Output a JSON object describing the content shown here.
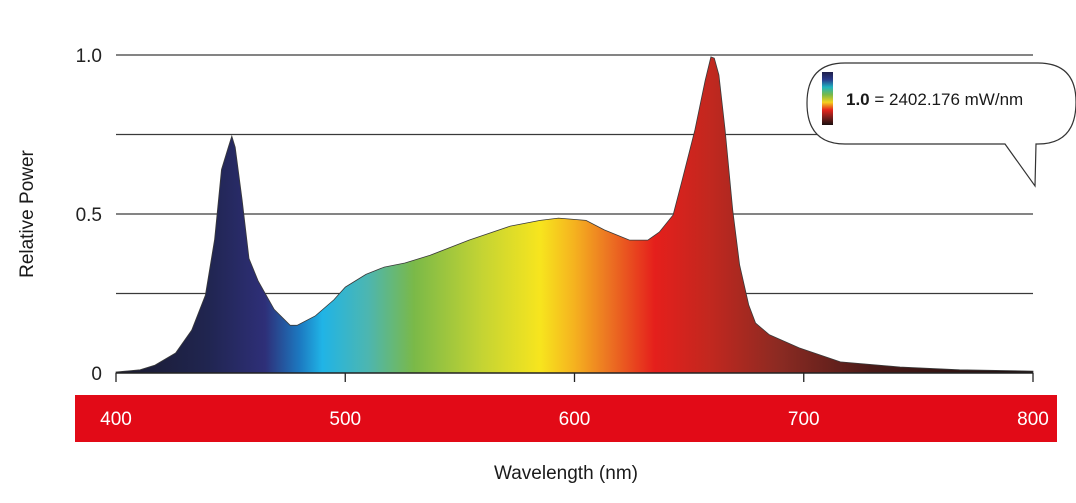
{
  "chart_data": {
    "type": "area",
    "title": "",
    "xlabel": "Wavelength (nm)",
    "ylabel": "Relative Power",
    "xlim": [
      400,
      800
    ],
    "ylim": [
      0,
      1.0
    ],
    "x_ticks": [
      400,
      500,
      600,
      700,
      800
    ],
    "x_tick_labels": [
      "400",
      "500",
      "600",
      "700",
      "800"
    ],
    "y_ticks": [
      0,
      0.25,
      0.5,
      0.75,
      1.0
    ],
    "y_tick_labels": [
      "0",
      "",
      "0.5",
      "",
      "1.0"
    ],
    "grid": "horizontal",
    "x_axis_band_color": "#e20a17",
    "series": [
      {
        "name": "Relative spectral power",
        "x": [
          400,
          410.5,
          417,
          426,
          433,
          439,
          443,
          446,
          449,
          450.5,
          452,
          455,
          458,
          462,
          469,
          476,
          479,
          487,
          495,
          500,
          509,
          517,
          526,
          537,
          554,
          572,
          585,
          593,
          605,
          613,
          624,
          632,
          637,
          643,
          647,
          652.5,
          657,
          659.5,
          661,
          663,
          665.7,
          669,
          672,
          676,
          679,
          685,
          698,
          716,
          742,
          768,
          800
        ],
        "y": [
          0.003,
          0.01,
          0.025,
          0.063,
          0.135,
          0.245,
          0.42,
          0.64,
          0.71,
          0.745,
          0.71,
          0.545,
          0.36,
          0.29,
          0.2,
          0.15,
          0.15,
          0.18,
          0.23,
          0.27,
          0.31,
          0.333,
          0.346,
          0.37,
          0.418,
          0.462,
          0.48,
          0.487,
          0.48,
          0.45,
          0.418,
          0.418,
          0.443,
          0.497,
          0.607,
          0.764,
          0.92,
          0.994,
          0.99,
          0.937,
          0.764,
          0.513,
          0.34,
          0.214,
          0.157,
          0.12,
          0.079,
          0.035,
          0.019,
          0.01,
          0.006
        ]
      }
    ],
    "spectrum_gradient": [
      {
        "nm": 400,
        "color": "#1a1a2e"
      },
      {
        "nm": 440,
        "color": "#202550"
      },
      {
        "nm": 465,
        "color": "#2e2f78"
      },
      {
        "nm": 480,
        "color": "#1c78c0"
      },
      {
        "nm": 490,
        "color": "#20b4e6"
      },
      {
        "nm": 510,
        "color": "#4db6b0"
      },
      {
        "nm": 530,
        "color": "#7ab948"
      },
      {
        "nm": 560,
        "color": "#c5d433"
      },
      {
        "nm": 585,
        "color": "#f7e51e"
      },
      {
        "nm": 600,
        "color": "#f5b21f"
      },
      {
        "nm": 615,
        "color": "#ec7322"
      },
      {
        "nm": 635,
        "color": "#e51f1c"
      },
      {
        "nm": 660,
        "color": "#c0281f"
      },
      {
        "nm": 690,
        "color": "#8a2a22"
      },
      {
        "nm": 730,
        "color": "#4a1a18"
      },
      {
        "nm": 800,
        "color": "#1a0e0e"
      }
    ],
    "annotations": [
      {
        "type": "callout",
        "bold_text": "1.0",
        "text": " = 2402.176 mW/nm",
        "legend_colors": [
          "#1f1f4a",
          "#2a3a8a",
          "#20b4c0",
          "#7ab948",
          "#f5d21e",
          "#e5251c",
          "#7a1e1c",
          "#1a0e0e"
        ]
      }
    ]
  }
}
